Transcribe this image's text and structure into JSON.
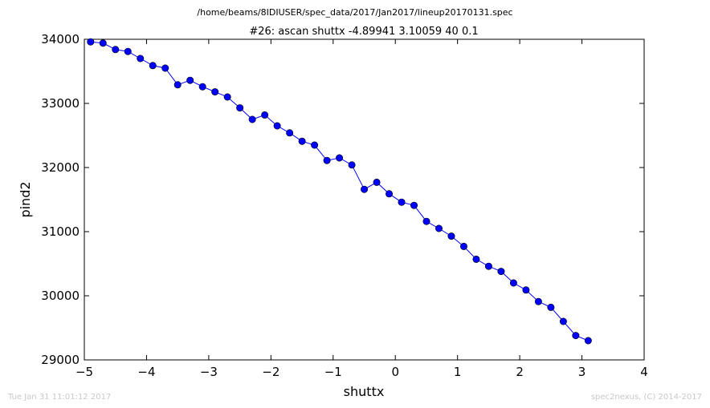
{
  "suptitle": "/home/beams/8IDIUSER/spec_data/2017/Jan2017/lineup20170131.spec",
  "footer_left": "Tue Jan 31 11:01:12 2017",
  "footer_right": "spec2nexus, (C) 2014-2017",
  "chart_data": {
    "type": "line",
    "title": "#26: ascan  shuttx -4.89941 3.10059  40 0.1",
    "xlabel": "shuttx",
    "ylabel": "pind2",
    "xlim": [
      -5,
      4
    ],
    "ylim": [
      29000,
      34000
    ],
    "xticks": [
      "−5",
      "−4",
      "−3",
      "−2",
      "−1",
      "0",
      "1",
      "2",
      "3",
      "4"
    ],
    "yticks": [
      "29000",
      "30000",
      "31000",
      "32000",
      "33000",
      "34000"
    ],
    "grid": false,
    "marker": "circle",
    "color": "#0000ff",
    "series": [
      {
        "x": [
          -4.89941,
          -4.69941,
          -4.49941,
          -4.29941,
          -4.09941,
          -3.89941,
          -3.69941,
          -3.49941,
          -3.29941,
          -3.09941,
          -2.89941,
          -2.69941,
          -2.49941,
          -2.29941,
          -2.09941,
          -1.89941,
          -1.69941,
          -1.49941,
          -1.29941,
          -1.09941,
          -0.89941,
          -0.69941,
          -0.49941,
          -0.29941,
          -0.09941,
          0.10059,
          0.30059,
          0.50059,
          0.70059,
          0.90059,
          1.10059,
          1.30059,
          1.50059,
          1.70059,
          1.90059,
          2.10059,
          2.30059,
          2.50059,
          2.70059,
          2.90059,
          3.10059
        ],
        "y": [
          33960,
          33940,
          33840,
          33810,
          33700,
          33590,
          33550,
          33290,
          33360,
          33260,
          33180,
          33100,
          32930,
          32750,
          32820,
          32650,
          32540,
          32410,
          32350,
          32110,
          32150,
          32040,
          31660,
          31770,
          31590,
          31460,
          31410,
          31160,
          31050,
          30930,
          30770,
          30570,
          30460,
          30380,
          30200,
          30090,
          29910,
          29820,
          29600,
          29380,
          29300
        ]
      }
    ]
  }
}
